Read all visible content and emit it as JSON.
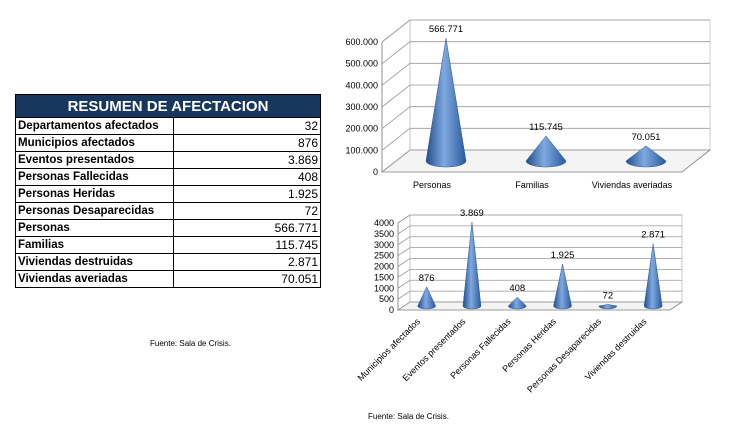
{
  "table": {
    "title": "RESUMEN DE AFECTACION",
    "rows": [
      {
        "label": "Departamentos afectados",
        "value": "32"
      },
      {
        "label": "Municipios afectados",
        "value": "876"
      },
      {
        "label": "Eventos presentados",
        "value": "3.869"
      },
      {
        "label": "Personas Fallecidas",
        "value": "408"
      },
      {
        "label": "Personas Heridas",
        "value": "1.925"
      },
      {
        "label": "Personas Desaparecidas",
        "value": "72"
      },
      {
        "label": "Personas",
        "value": "566.771"
      },
      {
        "label": "Familias",
        "value": "115.745"
      },
      {
        "label": "Viviendas destruidas",
        "value": "2.871"
      },
      {
        "label": "Viviendas averiadas",
        "value": "70.051"
      }
    ]
  },
  "sources": {
    "left": "Fuente: Sala de Crisis.",
    "bottom": "Fuente: Sala de Crisis."
  },
  "colors": {
    "header_bg": "#17375e",
    "cone": "#4a7fc4"
  },
  "chart_data": [
    {
      "type": "bar",
      "shape": "cone-3d",
      "categories": [
        "Personas",
        "Familias",
        "Viviendas averiadas"
      ],
      "values": [
        566771,
        115745,
        70051
      ],
      "data_labels": [
        "566.771",
        "115.745",
        "70.051"
      ],
      "ylim": [
        0,
        600000
      ],
      "yticks": [
        0,
        100000,
        200000,
        300000,
        400000,
        500000,
        600000
      ],
      "ytick_labels": [
        "0",
        "100.000",
        "200.000",
        "300.000",
        "400.000",
        "500.000",
        "600.000"
      ],
      "grid": true
    },
    {
      "type": "bar",
      "shape": "cone-3d",
      "categories": [
        "Municipios afectados",
        "Eventos presentados",
        "Personas Fallecidas",
        "Personas Heridas",
        "Personas Desaparecidas",
        "Viviendas destruidas"
      ],
      "values": [
        876,
        3869,
        408,
        1925,
        72,
        2871
      ],
      "data_labels": [
        "876",
        "3.869",
        "408",
        "1.925",
        "72",
        "2.871"
      ],
      "ylim": [
        0,
        4000
      ],
      "yticks": [
        0,
        500,
        1000,
        1500,
        2000,
        2500,
        3000,
        3500,
        4000
      ],
      "ytick_labels": [
        "0",
        "500",
        "1000",
        "1500",
        "2000",
        "2500",
        "3000",
        "3500",
        "4000"
      ],
      "grid": true
    }
  ]
}
